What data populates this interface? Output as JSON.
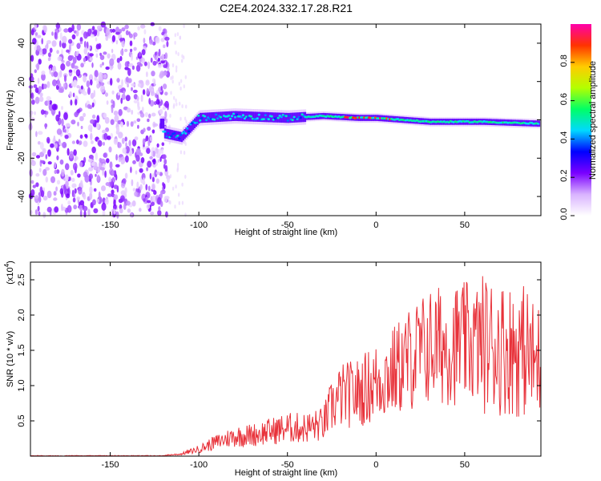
{
  "title": "C2E4.2024.332.17.28.R21",
  "colors": {
    "snr_line": "#e8323a",
    "axis": "#000000",
    "background": "#ffffff"
  },
  "chart_data": [
    {
      "type": "heatmap",
      "xlabel": "Height of straight line (km)",
      "ylabel": "Frequency (Hz)",
      "xlim": [
        -195,
        93
      ],
      "ylim": [
        -50,
        50
      ],
      "xticks": [
        -150,
        -100,
        -50,
        0,
        50
      ],
      "yticks": [
        -40,
        -20,
        0,
        20,
        40
      ],
      "colorbar": {
        "label": "Normalized spectral amplitude",
        "range": [
          0,
          1
        ],
        "ticks": [
          "0.0",
          "0.2",
          "0.4",
          "0.6",
          "0.8"
        ],
        "tick_values": [
          0.0,
          0.2,
          0.4,
          0.6,
          0.8
        ],
        "colormap": [
          "#ffffff",
          "#d9b3ff",
          "#7a00ff",
          "#0000ff",
          "#00d9ff",
          "#00ff66",
          "#b3ff00",
          "#ffcc00",
          "#ff3300",
          "#ff00aa"
        ]
      },
      "signal_track": [
        {
          "x": -120,
          "y": -7
        },
        {
          "x": -110,
          "y": -9
        },
        {
          "x": -100,
          "y": 1
        },
        {
          "x": -80,
          "y": 2
        },
        {
          "x": -50,
          "y": 1
        },
        {
          "x": -30,
          "y": 2
        },
        {
          "x": -10,
          "y": 1
        },
        {
          "x": 0,
          "y": 1
        },
        {
          "x": 30,
          "y": -1
        },
        {
          "x": 60,
          "y": -1
        },
        {
          "x": 92,
          "y": -2
        }
      ]
    },
    {
      "type": "line",
      "xlabel": "Height of straight line (km)",
      "ylabel": "SNR (10 * v/v)",
      "scale_label": "(x10",
      "scale_exponent": "4",
      "scale_suffix": ")",
      "xlim": [
        -195,
        93
      ],
      "ylim": [
        0,
        2.75
      ],
      "xticks": [
        -150,
        -100,
        -50,
        0,
        50
      ],
      "yticks": [
        0.5,
        1.0,
        1.5,
        2.0,
        2.5
      ],
      "ytick_labels": [
        "0.5",
        "1.0",
        "1.5",
        "2.0",
        "2.5"
      ],
      "envelope": {
        "x": [
          -195,
          -130,
          -120,
          -110,
          -100,
          -90,
          -80,
          -70,
          -60,
          -50,
          -40,
          -30,
          -25,
          -20,
          -10,
          0,
          10,
          20,
          30,
          40,
          50,
          60,
          70,
          80,
          85,
          90,
          93
        ],
        "y": [
          0.0,
          0.0,
          0.01,
          0.03,
          0.1,
          0.2,
          0.28,
          0.3,
          0.35,
          0.4,
          0.4,
          0.45,
          0.7,
          0.85,
          0.9,
          1.05,
          1.2,
          1.4,
          1.55,
          1.58,
          1.6,
          1.6,
          1.55,
          1.5,
          1.5,
          1.3,
          1.4
        ]
      }
    }
  ]
}
